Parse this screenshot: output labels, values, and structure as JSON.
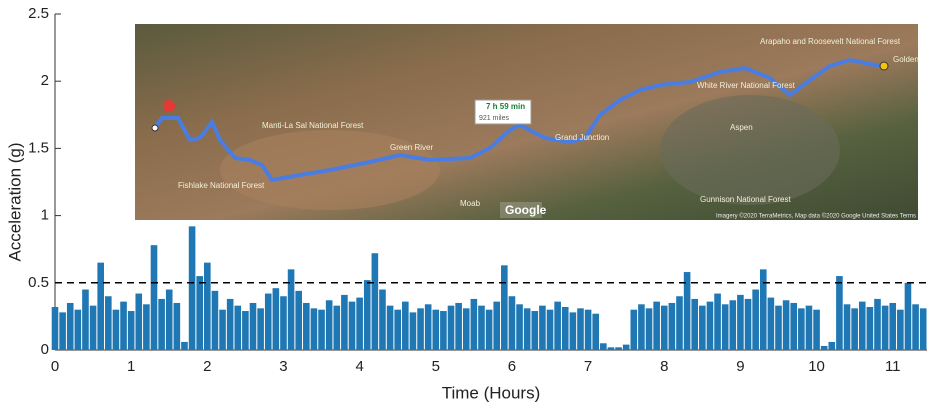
{
  "chart_data": {
    "type": "stem",
    "xlabel": "Time (Hours)",
    "ylabel": "Acceleration (g)",
    "color": "#1f77b4",
    "x": [
      0.0,
      0.1,
      0.2,
      0.3,
      0.4,
      0.5,
      0.6,
      0.7,
      0.8,
      0.9,
      1.0,
      1.1,
      1.2,
      1.3,
      1.4,
      1.5,
      1.6,
      1.7,
      1.8,
      1.9,
      2.0,
      2.1,
      2.2,
      2.3,
      2.4,
      2.5,
      2.6,
      2.7,
      2.8,
      2.9,
      3.0,
      3.1,
      3.2,
      3.3,
      3.4,
      3.5,
      3.6,
      3.7,
      3.8,
      3.9,
      4.0,
      4.1,
      4.2,
      4.3,
      4.4,
      4.5,
      4.6,
      4.7,
      4.8,
      4.9,
      5.0,
      5.1,
      5.2,
      5.3,
      5.4,
      5.5,
      5.6,
      5.7,
      5.8,
      5.9,
      6.0,
      6.1,
      6.2,
      6.3,
      6.4,
      6.5,
      6.6,
      6.7,
      6.8,
      6.9,
      7.0,
      7.1,
      7.2,
      7.3,
      7.4,
      7.5,
      7.6,
      7.7,
      7.8,
      7.9,
      8.0,
      8.1,
      8.2,
      8.3,
      8.4,
      8.5,
      8.6,
      8.7,
      8.8,
      8.9,
      9.0,
      9.1,
      9.2,
      9.3,
      9.4,
      9.5,
      9.6,
      9.7,
      9.8,
      9.9,
      10.0,
      10.1,
      10.2,
      10.3,
      10.4,
      10.5,
      10.6,
      10.7,
      10.8,
      10.9,
      11.0,
      11.1,
      11.2,
      11.3,
      11.4
    ],
    "values": [
      0.32,
      0.28,
      0.35,
      0.3,
      0.45,
      0.33,
      0.65,
      0.4,
      0.3,
      0.36,
      0.29,
      0.42,
      0.34,
      0.78,
      0.38,
      0.45,
      0.35,
      0.06,
      0.92,
      0.55,
      0.65,
      0.44,
      0.3,
      0.38,
      0.33,
      0.29,
      0.35,
      0.31,
      0.42,
      0.46,
      0.4,
      0.6,
      0.44,
      0.35,
      0.31,
      0.3,
      0.37,
      0.33,
      0.41,
      0.36,
      0.39,
      0.52,
      0.72,
      0.45,
      0.33,
      0.3,
      0.36,
      0.28,
      0.31,
      0.34,
      0.3,
      0.29,
      0.33,
      0.35,
      0.31,
      0.38,
      0.33,
      0.3,
      0.36,
      0.63,
      0.4,
      0.34,
      0.31,
      0.29,
      0.33,
      0.3,
      0.36,
      0.32,
      0.28,
      0.31,
      0.3,
      0.27,
      0.05,
      0.02,
      0.02,
      0.04,
      0.3,
      0.34,
      0.31,
      0.36,
      0.33,
      0.35,
      0.4,
      0.58,
      0.38,
      0.33,
      0.36,
      0.42,
      0.34,
      0.37,
      0.41,
      0.38,
      0.45,
      0.6,
      0.39,
      0.33,
      0.37,
      0.35,
      0.31,
      0.33,
      0.3,
      0.03,
      0.06,
      0.55,
      0.34,
      0.31,
      0.36,
      0.32,
      0.38,
      0.33,
      0.35,
      0.3,
      0.5,
      0.34,
      0.31
    ],
    "threshold": 0.5,
    "xlim": [
      0,
      11.45
    ],
    "ylim": [
      0,
      2.5
    ],
    "xticks": [
      0,
      1,
      2,
      3,
      4,
      5,
      6,
      7,
      8,
      9,
      10,
      11
    ],
    "yticks": [
      0,
      0.5,
      1,
      1.5,
      2,
      2.5
    ],
    "grid": false
  },
  "map": {
    "route_time": "7 h 59 min",
    "route_distance": "921 miles",
    "brand": "Google",
    "places": [
      "Golden",
      "White River National Forest",
      "Grand Junction",
      "Manti-La Sal National Forest",
      "Fishlake National Forest",
      "Gunnison National Forest",
      "Arapaho and Roosevelt National Forest",
      "Green River",
      "Moab",
      "Aspen"
    ],
    "attribution": "Imagery ©2020 TerraMetrics, Map data ©2020 Google   United States   Terms"
  }
}
